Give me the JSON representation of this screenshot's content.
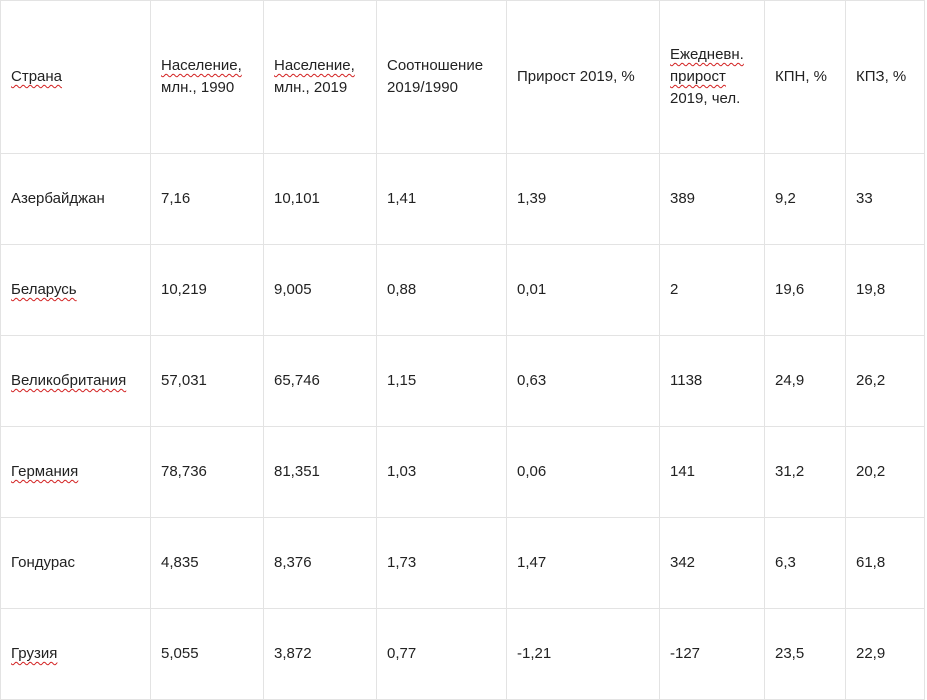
{
  "table": {
    "headers": [
      [
        "Страна"
      ],
      [
        "Население,",
        "млн., 1990"
      ],
      [
        "Население,",
        "млн., 2019"
      ],
      [
        "Соотношение",
        "2019/1990"
      ],
      [
        "Прирост 2019, %"
      ],
      [
        "Ежедневн.",
        "прирост",
        "2019, чел."
      ],
      [
        "КПН, %"
      ],
      [
        "КПЗ, %"
      ]
    ],
    "rows": [
      [
        "Азербайджан",
        "7,16",
        "10,101",
        "1,41",
        "1,39",
        "389",
        "9,2",
        "33"
      ],
      [
        "Беларусь",
        "10,219",
        "9,005",
        "0,88",
        "0,01",
        "2",
        "19,6",
        "19,8"
      ],
      [
        "Великобритания",
        "57,031",
        "65,746",
        "1,15",
        "0,63",
        "1138",
        "24,9",
        "26,2"
      ],
      [
        "Германия",
        "78,736",
        "81,351",
        "1,03",
        "0,06",
        "141",
        "31,2",
        "20,2"
      ],
      [
        "Гондурас",
        "4,835",
        "8,376",
        "1,73",
        "1,47",
        "342",
        "6,3",
        "61,8"
      ],
      [
        "Грузия",
        "5,055",
        "3,872",
        "0,77",
        "-1,21",
        "-127",
        "23,5",
        "22,9"
      ]
    ]
  }
}
